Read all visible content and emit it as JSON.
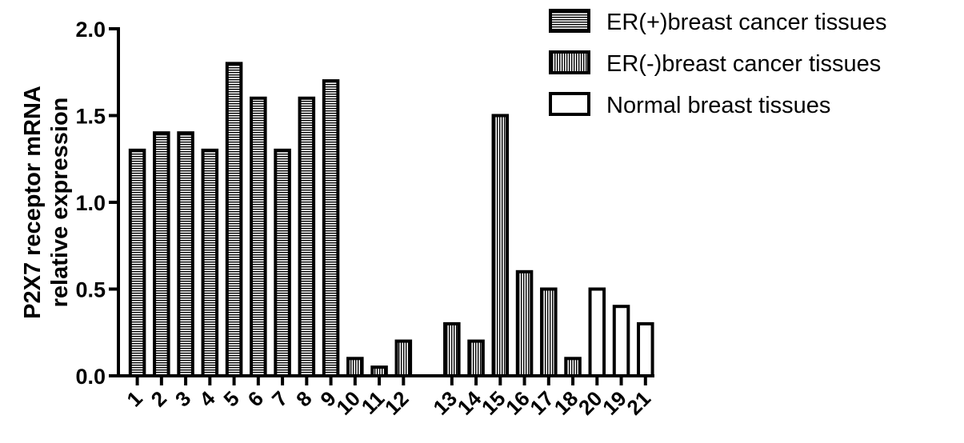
{
  "chart_data": {
    "type": "bar",
    "ylabel": [
      "P2X7 receptor mRNA",
      "relative expression"
    ],
    "ylim": [
      0,
      2.0
    ],
    "yticks": [
      "0.0",
      "0.5",
      "1.0",
      "1.5",
      "2.0"
    ],
    "legend_position": "top-right",
    "grid": false,
    "series": [
      {
        "name": "ER(+)breast cancer tissues",
        "pattern": "horizontal-stripes",
        "categories": [
          "1",
          "2",
          "3",
          "4",
          "5",
          "6",
          "7",
          "8",
          "9"
        ],
        "values": [
          1.3,
          1.4,
          1.4,
          1.3,
          1.8,
          1.6,
          1.3,
          1.6,
          1.7
        ]
      },
      {
        "name": "ER(-)breast cancer tissues",
        "pattern": "vertical-stripes",
        "categories": [
          "10",
          "11",
          "12",
          "13",
          "14",
          "15",
          "16",
          "17",
          "18"
        ],
        "values": [
          0.1,
          0.05,
          0.2,
          0.3,
          0.2,
          1.5,
          0.6,
          0.5,
          0.1
        ]
      },
      {
        "name": "Normal breast tissues",
        "pattern": "open",
        "categories": [
          "20",
          "19",
          "21"
        ],
        "values": [
          0.5,
          0.4,
          0.3
        ]
      }
    ]
  }
}
